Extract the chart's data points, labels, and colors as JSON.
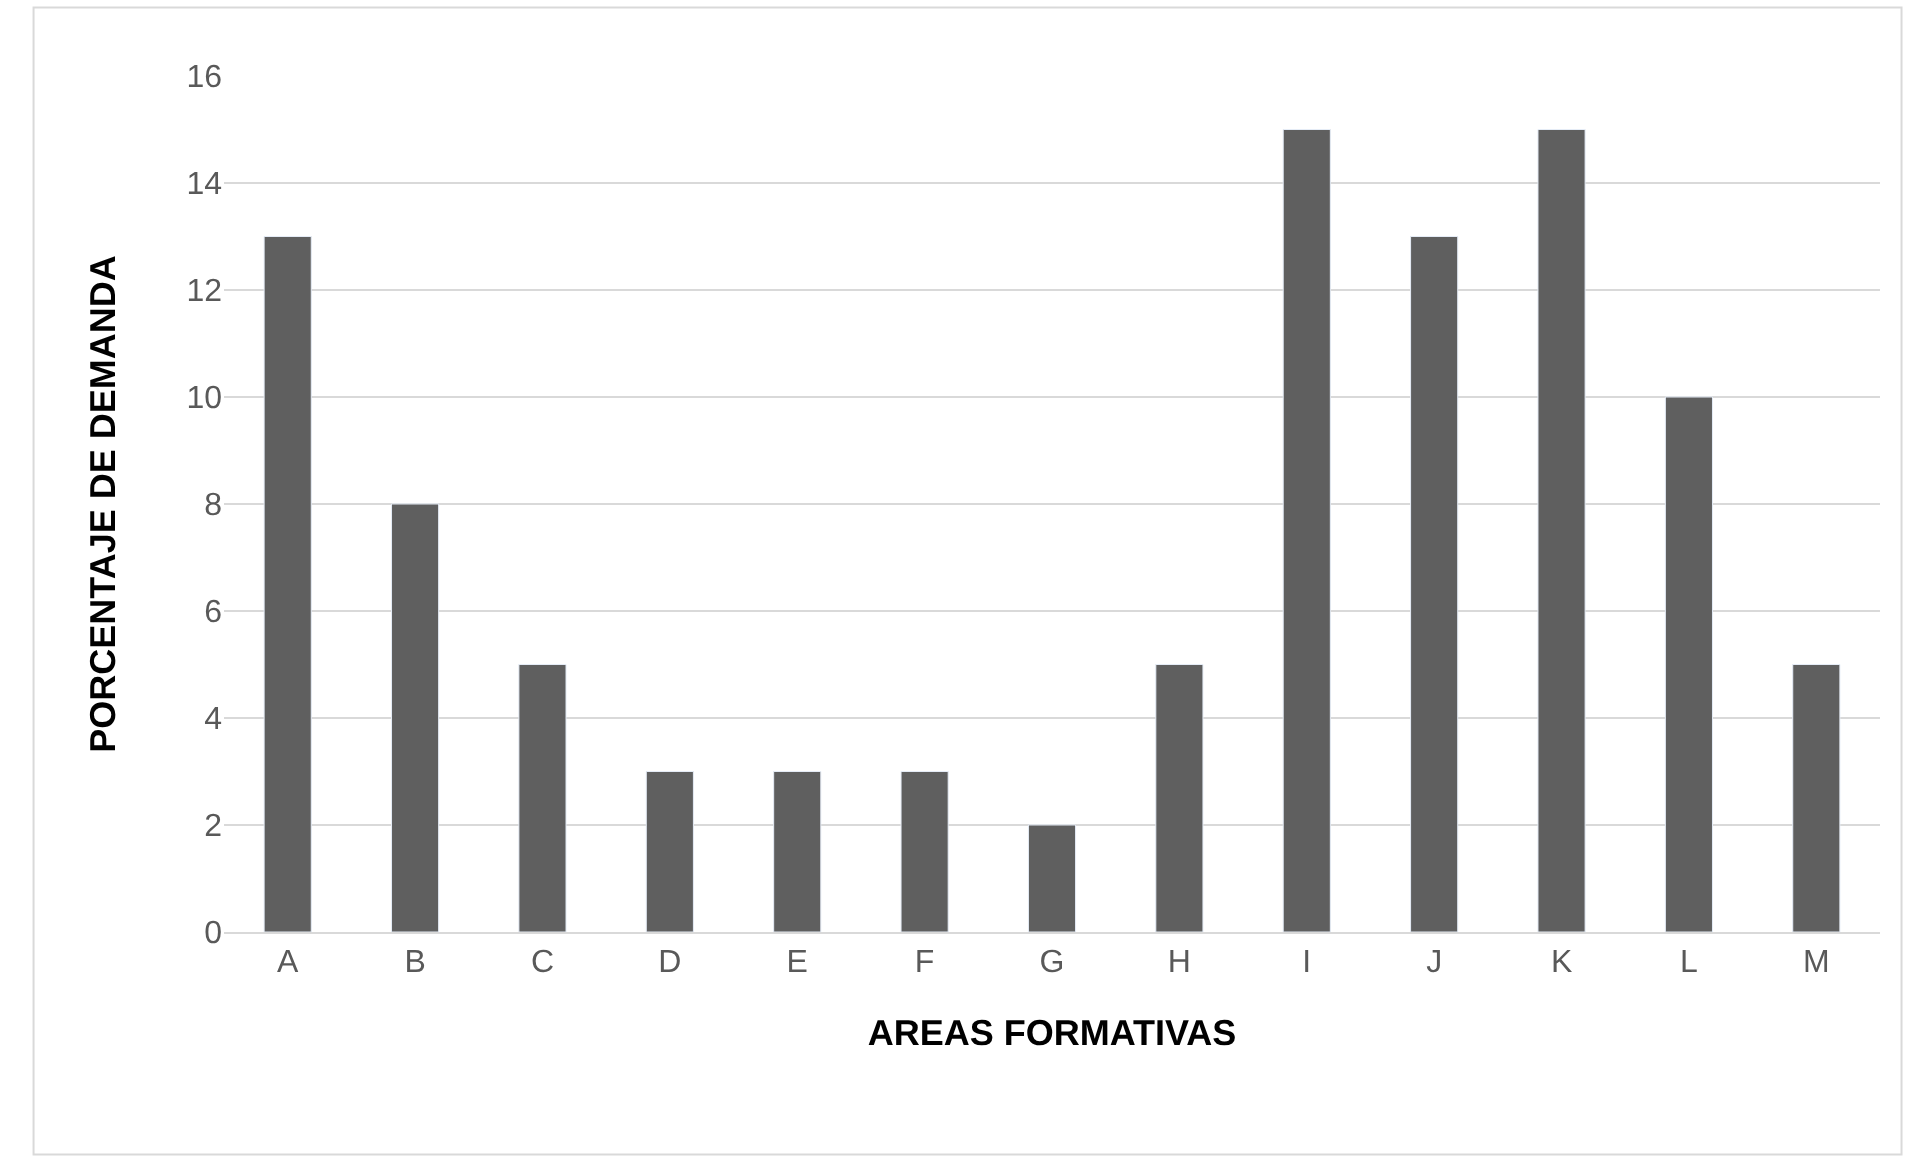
{
  "chart_data": {
    "type": "bar",
    "xlabel": "AREAS FORMATIVAS",
    "ylabel": "PORCENTAJE DE DEMANDA",
    "categories": [
      "A",
      "B",
      "C",
      "D",
      "E",
      "F",
      "G",
      "H",
      "I",
      "J",
      "K",
      "L",
      "M"
    ],
    "values": [
      13,
      8,
      5,
      3,
      3,
      3,
      2,
      5,
      15,
      13,
      15,
      10,
      5
    ],
    "color": "#5f5f5f",
    "ylim": [
      0,
      16
    ],
    "yticks": [
      0,
      2,
      4,
      6,
      8,
      10,
      12,
      14,
      16
    ],
    "grid": "y"
  }
}
